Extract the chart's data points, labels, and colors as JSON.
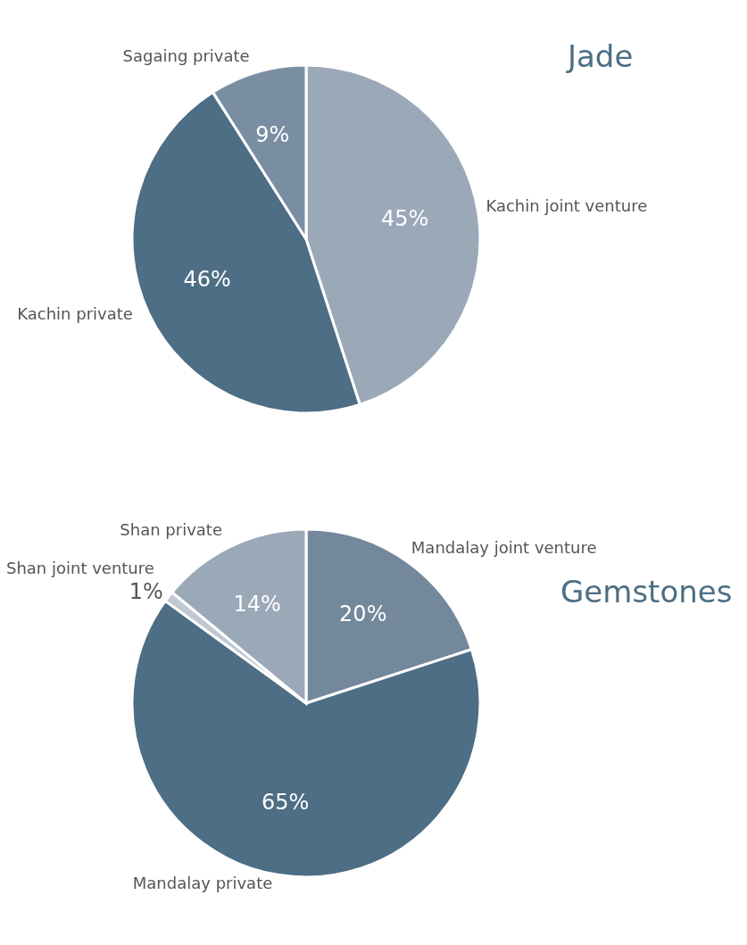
{
  "chart_data": [
    {
      "type": "pie",
      "title": "Jade",
      "categories": [
        "Kachin joint venture",
        "Kachin private",
        "Sagaing private"
      ],
      "values": [
        45,
        46,
        9
      ],
      "value_labels": [
        "45%",
        "46%",
        "9%"
      ],
      "colors": [
        "#9ba8b8",
        "#4d6e84",
        "#7a8ea3"
      ]
    },
    {
      "type": "pie",
      "title": "Gemstones",
      "categories": [
        "Mandalay joint venture",
        "Mandalay private",
        "Shan joint venture",
        "Shan private"
      ],
      "values": [
        20,
        65,
        1,
        14
      ],
      "value_labels": [
        "20%",
        "65%",
        "1%",
        "14%"
      ],
      "colors": [
        "#74889c",
        "#4d6e84",
        "#c0c8d2",
        "#9ba8b8"
      ]
    }
  ]
}
